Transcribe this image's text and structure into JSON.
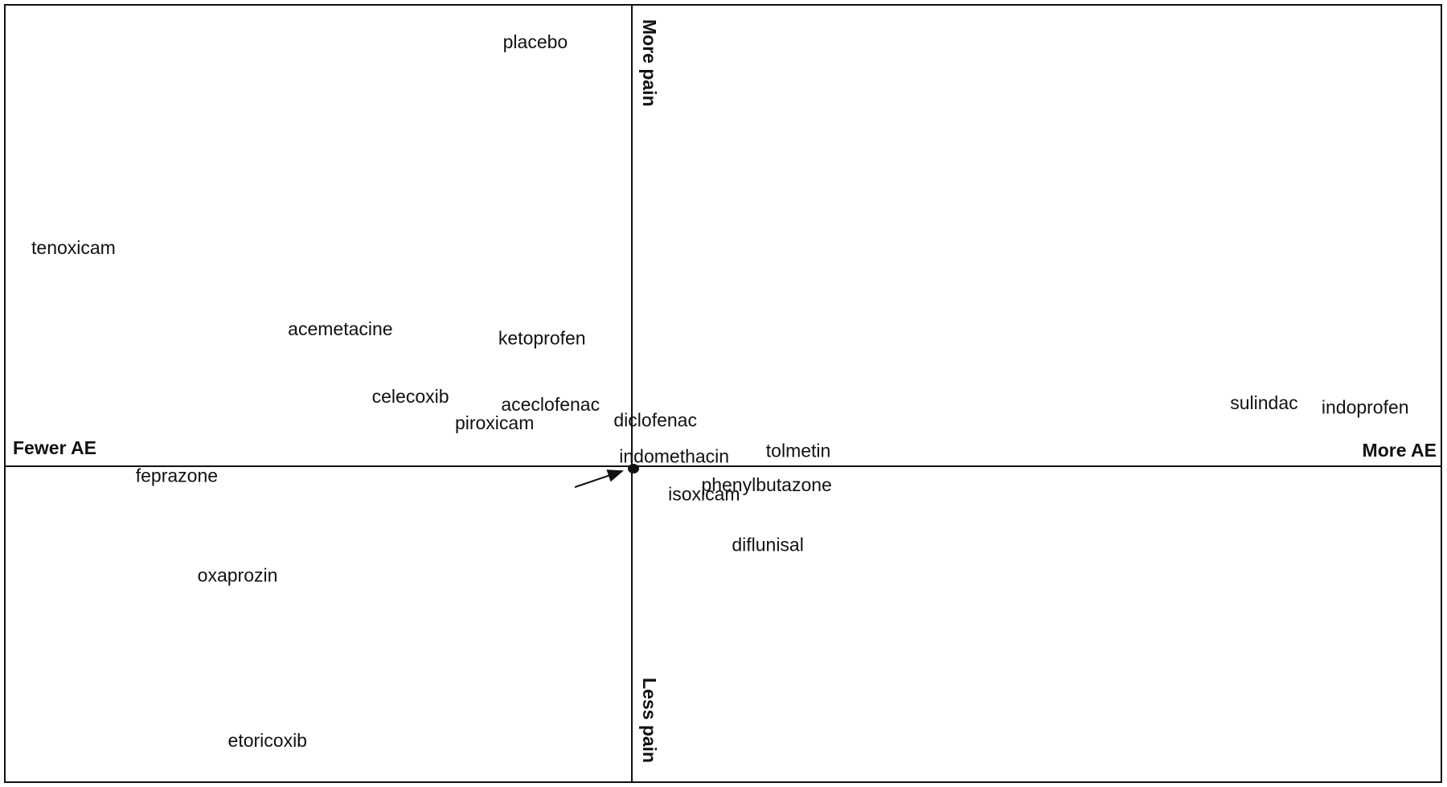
{
  "axes": {
    "left": "Fewer AE",
    "right": "More AE",
    "top": "More pain",
    "bottom": "Less pain"
  },
  "drugs": [
    "placebo",
    "tenoxicam",
    "acemetacine",
    "ketoprofen",
    "celecoxib",
    "aceclofenac",
    "piroxicam",
    "diclofenac",
    "indomethacin",
    "tolmetin",
    "sulindac",
    "indoprofen",
    "feprazone",
    "phenylbutazone",
    "isoxicam",
    "diflunisal",
    "oxaprozin",
    "etoricoxib"
  ]
}
